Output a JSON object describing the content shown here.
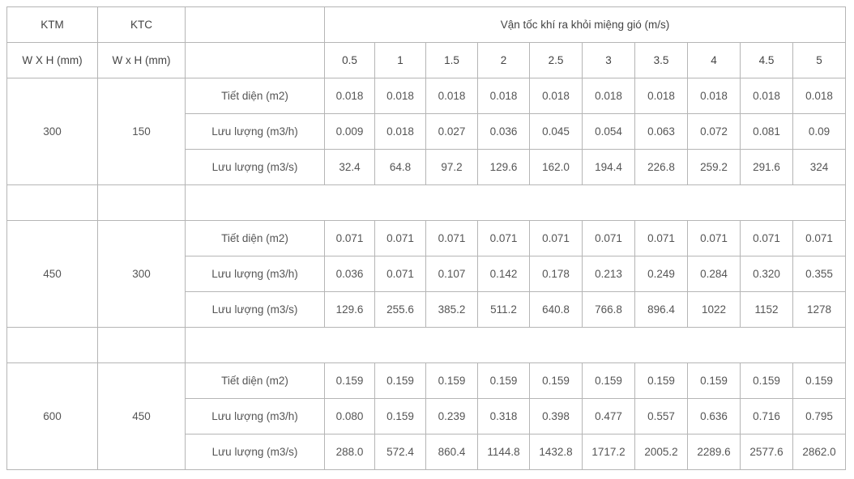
{
  "header": {
    "col_ktm": "KTM",
    "col_ktc": "KTC",
    "velocity_title": "Vận tốc khí ra khỏi miệng gió (m/s)",
    "ktm_unit": "W X H (mm)",
    "ktc_unit": "W x H (mm)",
    "velocities": [
      "0.5",
      "1",
      "1.5",
      "2",
      "2.5",
      "3",
      "3.5",
      "4",
      "4.5",
      "5"
    ]
  },
  "groups": [
    {
      "ktm": "300",
      "ktc": "150",
      "rows": [
        {
          "label": "Tiết diện (m2)",
          "values": [
            "0.018",
            "0.018",
            "0.018",
            "0.018",
            "0.018",
            "0.018",
            "0.018",
            "0.018",
            "0.018",
            "0.018"
          ]
        },
        {
          "label": "Lưu lượng (m3/h)",
          "values": [
            "0.009",
            "0.018",
            "0.027",
            "0.036",
            "0.045",
            "0.054",
            "0.063",
            "0.072",
            "0.081",
            "0.09"
          ]
        },
        {
          "label": "Lưu lượng (m3/s)",
          "values": [
            "32.4",
            "64.8",
            "97.2",
            "129.6",
            "162.0",
            "194.4",
            "226.8",
            "259.2",
            "291.6",
            "324"
          ]
        }
      ]
    },
    {
      "ktm": "450",
      "ktc": "300",
      "rows": [
        {
          "label": "Tiết diện (m2)",
          "values": [
            "0.071",
            "0.071",
            "0.071",
            "0.071",
            "0.071",
            "0.071",
            "0.071",
            "0.071",
            "0.071",
            "0.071"
          ]
        },
        {
          "label": "Lưu lượng (m3/h)",
          "values": [
            "0.036",
            "0.071",
            "0.107",
            "0.142",
            "0.178",
            "0.213",
            "0.249",
            "0.284",
            "0.320",
            "0.355"
          ]
        },
        {
          "label": "Lưu lượng (m3/s)",
          "values": [
            "129.6",
            "255.6",
            "385.2",
            "511.2",
            "640.8",
            "766.8",
            "896.4",
            "1022",
            "1152",
            "1278"
          ]
        }
      ]
    },
    {
      "ktm": "600",
      "ktc": "450",
      "rows": [
        {
          "label": "Tiết diện (m2)",
          "values": [
            "0.159",
            "0.159",
            "0.159",
            "0.159",
            "0.159",
            "0.159",
            "0.159",
            "0.159",
            "0.159",
            "0.159"
          ]
        },
        {
          "label": "Lưu lượng (m3/h)",
          "values": [
            "0.080",
            "0.159",
            "0.239",
            "0.318",
            "0.398",
            "0.477",
            "0.557",
            "0.636",
            "0.716",
            "0.795"
          ]
        },
        {
          "label": "Lưu lượng (m3/s)",
          "values": [
            "288.0",
            "572.4",
            "860.4",
            "1144.8",
            "1432.8",
            "1717.2",
            "2005.2",
            "2289.6",
            "2577.6",
            "2862.0"
          ]
        }
      ]
    }
  ]
}
